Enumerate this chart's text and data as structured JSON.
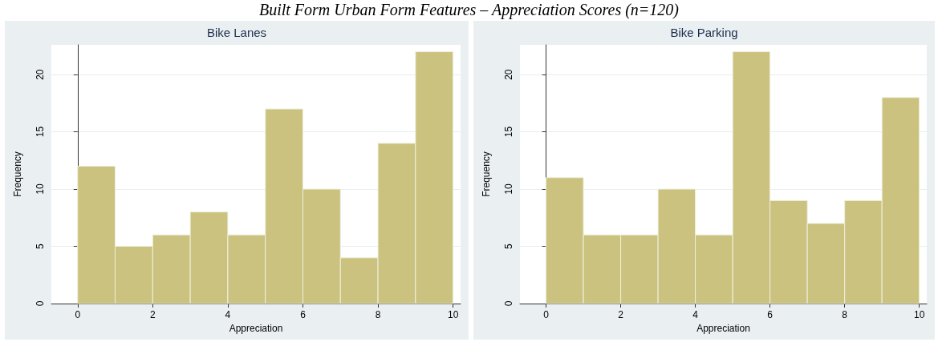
{
  "chart_data": [
    {
      "type": "histogram",
      "title": "Bike Lanes",
      "xlabel": "Appreciation",
      "ylabel": "Frequency",
      "annotations": [
        "Built Form Urban Form Features – Appreciation Scores (n=120)"
      ],
      "bins": [
        0,
        1,
        2,
        3,
        4,
        5,
        6,
        7,
        8,
        9,
        10
      ],
      "values": [
        12,
        5,
        6,
        8,
        6,
        17,
        10,
        4,
        14,
        22
      ],
      "color": "#cbc27f",
      "xlim": [
        -0.7,
        10.2
      ],
      "xticks": [
        0,
        2,
        4,
        6,
        8,
        10
      ],
      "ylim": [
        0,
        22.6
      ],
      "yticks": [
        0,
        5,
        10,
        15,
        20
      ],
      "grid": "y"
    },
    {
      "type": "histogram",
      "title": "Bike Parking",
      "xlabel": "Appreciation",
      "ylabel": "Frequency",
      "bins": [
        0,
        1,
        2,
        3,
        4,
        5,
        6,
        7,
        8,
        9,
        10
      ],
      "values": [
        11,
        6,
        6,
        10,
        6,
        22,
        9,
        7,
        9,
        18
      ],
      "color": "#cbc27f",
      "xlim": [
        -0.7,
        10.2
      ],
      "xticks": [
        0,
        2,
        4,
        6,
        8,
        10
      ],
      "ylim": [
        0,
        22.6
      ],
      "yticks": [
        0,
        5,
        10,
        15,
        20
      ],
      "grid": "y"
    }
  ]
}
